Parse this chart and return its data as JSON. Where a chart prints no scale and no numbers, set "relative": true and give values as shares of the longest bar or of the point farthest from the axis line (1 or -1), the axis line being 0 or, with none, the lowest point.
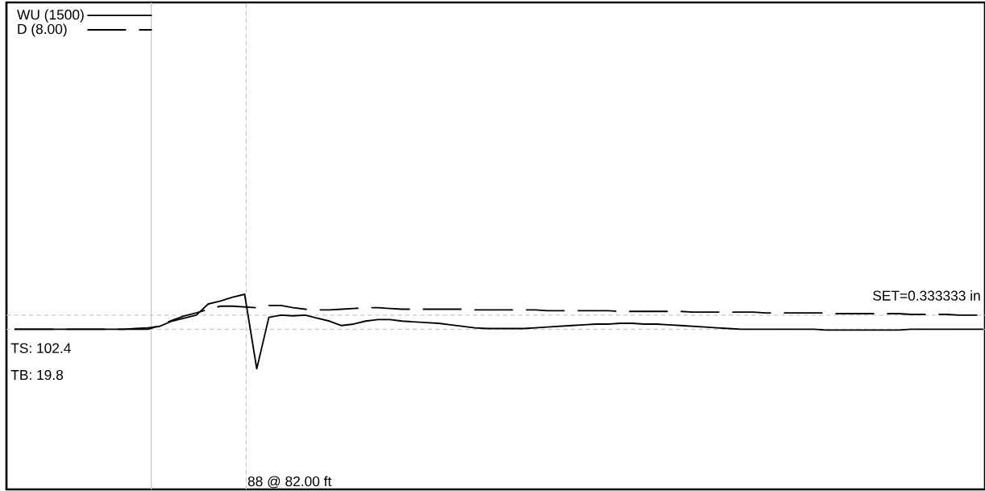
{
  "chart_data": {
    "type": "line",
    "relative": true,
    "legend": "top left",
    "tick_labels": false,
    "categories": [
      null,
      null,
      null,
      null,
      null,
      null,
      null,
      null,
      null,
      null,
      null,
      null,
      null,
      null,
      null,
      null,
      null,
      null,
      null,
      null,
      null,
      null,
      null,
      null,
      null,
      null,
      null,
      null,
      null,
      null,
      null,
      null,
      null,
      null,
      null,
      null,
      null,
      null,
      null,
      null,
      null,
      null,
      null,
      null,
      null,
      null,
      null,
      null,
      null,
      null,
      null,
      null,
      null,
      null,
      null,
      null,
      null,
      null,
      null,
      null,
      null,
      null,
      null,
      null,
      null,
      null,
      null,
      null,
      null,
      null,
      null,
      null,
      null,
      null,
      null,
      null,
      null,
      null,
      null,
      null,
      null
    ],
    "series": [
      {
        "name": "WU (1500)",
        "color": "#000000",
        "line_style": "solid",
        "values": [
          0.53,
          0.53,
          0.53,
          0.53,
          0.53,
          0.53,
          0.53,
          0.53,
          0.53,
          0.53,
          0.54,
          0.55,
          0.57,
          0.64,
          0.68,
          0.72,
          0.87,
          0.91,
          0.96,
          1,
          0,
          0.69,
          0.72,
          0.71,
          0.72,
          0.68,
          0.64,
          0.58,
          0.6,
          0.64,
          0.66,
          0.66,
          0.64,
          0.63,
          0.62,
          0.61,
          0.59,
          0.57,
          0.55,
          0.54,
          0.54,
          0.54,
          0.54,
          0.55,
          0.56,
          0.57,
          0.58,
          0.59,
          0.6,
          0.6,
          0.61,
          0.61,
          0.6,
          0.6,
          0.59,
          0.58,
          0.57,
          0.56,
          0.55,
          0.54,
          0.53,
          0.53,
          0.53,
          0.53,
          0.53,
          0.53,
          0.53,
          0.52,
          0.52,
          0.52,
          0.52,
          0.52,
          0.52,
          0.52,
          0.53,
          0.53,
          0.53,
          0.53,
          0.53,
          0.53,
          0.53
        ]
      },
      {
        "name": "D (8.00)",
        "color": "#000000",
        "line_style": "dashed",
        "values": [
          0.53,
          0.53,
          0.53,
          0.53,
          0.53,
          0.53,
          0.53,
          0.53,
          0.53,
          0.53,
          0.53,
          0.53,
          0.58,
          0.65,
          0.71,
          0.75,
          0.8,
          0.84,
          0.84,
          0.83,
          0.82,
          0.85,
          0.85,
          0.82,
          0.8,
          0.79,
          0.79,
          0.8,
          0.81,
          0.82,
          0.82,
          0.81,
          0.8,
          0.8,
          0.8,
          0.8,
          0.8,
          0.8,
          0.79,
          0.79,
          0.79,
          0.79,
          0.79,
          0.79,
          0.78,
          0.78,
          0.78,
          0.78,
          0.78,
          0.78,
          0.77,
          0.77,
          0.77,
          0.77,
          0.77,
          0.77,
          0.76,
          0.76,
          0.76,
          0.76,
          0.76,
          0.76,
          0.75,
          0.75,
          0.75,
          0.75,
          0.75,
          0.75,
          0.74,
          0.74,
          0.74,
          0.74,
          0.74,
          0.74,
          0.73,
          0.73,
          0.73,
          0.73,
          0.72,
          0.72,
          0.72
        ]
      }
    ],
    "ref_lines": [
      {
        "axis": "y",
        "value": 0.53,
        "color": "#c8c8c8",
        "line_style": "dashed"
      },
      {
        "axis": "y",
        "value": 0.72,
        "color": "#c8c8c8",
        "line_style": "dashed"
      }
    ],
    "annotations": [
      "SET=0.333333 in",
      "TS: 102.4",
      "TB: 19.8",
      "88 @ 82.00 ft"
    ]
  }
}
